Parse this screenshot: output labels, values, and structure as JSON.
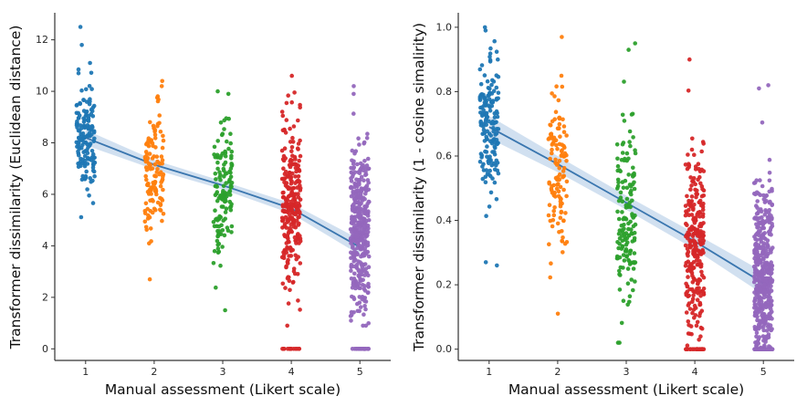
{
  "figure": {
    "background": "#ffffff"
  },
  "chart_data": [
    {
      "type": "scatter",
      "variant": "strip-plot-with-regression-line",
      "title": "",
      "xlabel": "Manual assessment (Likert scale)",
      "ylabel": "Transformer dissimilarity (Euclidean distance)",
      "xlim": [
        0.55,
        5.45
      ],
      "ylim": [
        -0.45,
        13.05
      ],
      "xticks": [
        1,
        2,
        3,
        4,
        5
      ],
      "xtick_labels": [
        "1",
        "2",
        "3",
        "4",
        "5"
      ],
      "yticks": [
        0,
        2,
        4,
        6,
        8,
        10,
        12
      ],
      "ytick_labels": [
        "0",
        "2",
        "4",
        "6",
        "8",
        "10",
        "12"
      ],
      "grid": false,
      "legend": "none",
      "categories": [
        {
          "x": 1,
          "label": "1",
          "color": "#1f77b4",
          "count": 150,
          "mean": 8.15,
          "sd": 1.1,
          "min": 4.6,
          "max": 12.6,
          "zeros": 0,
          "extras": [
            12.5,
            11.8,
            11.1,
            10.7
          ]
        },
        {
          "x": 2,
          "label": "2",
          "color": "#ff7f0e",
          "count": 125,
          "mean": 7.0,
          "sd": 1.2,
          "min": 2.6,
          "max": 10.5,
          "zeros": 0,
          "extras": [
            10.4,
            2.7
          ]
        },
        {
          "x": 3,
          "label": "3",
          "color": "#2ca02c",
          "count": 135,
          "mean": 6.2,
          "sd": 1.35,
          "min": 1.5,
          "max": 10.0,
          "zeros": 0,
          "extras": [
            10.0,
            9.9,
            1.5
          ]
        },
        {
          "x": 4,
          "label": "4",
          "color": "#d62728",
          "count": 260,
          "mean": 5.6,
          "sd": 1.65,
          "min": 0.9,
          "max": 10.7,
          "zeros": 14,
          "extras": [
            10.6
          ]
        },
        {
          "x": 5,
          "label": "5",
          "color": "#9467bd",
          "count": 380,
          "mean": 4.65,
          "sd": 1.65,
          "min": 0.9,
          "max": 10.2,
          "zeros": 26,
          "extras": [
            10.2,
            9.9
          ]
        }
      ],
      "trend": {
        "x": [
          1,
          2,
          3,
          4,
          5
        ],
        "y": [
          8.2,
          7.15,
          6.35,
          5.45,
          3.95
        ],
        "ci": [
          0.3,
          0.18,
          0.16,
          0.2,
          0.3
        ],
        "line_color": "#3a76af",
        "band_color": "#7ba7d4"
      }
    },
    {
      "type": "scatter",
      "variant": "strip-plot-with-regression-line",
      "title": "",
      "xlabel": "Manual assessment (Likert scale)",
      "ylabel": "Transformer dissimilarity (1 - cosine simalirity)",
      "xlim": [
        0.55,
        5.45
      ],
      "ylim": [
        -0.035,
        1.045
      ],
      "xticks": [
        1,
        2,
        3,
        4,
        5
      ],
      "xtick_labels": [
        "1",
        "2",
        "3",
        "4",
        "5"
      ],
      "yticks": [
        0.0,
        0.2,
        0.4,
        0.6,
        0.8,
        1.0
      ],
      "ytick_labels": [
        "0.0",
        "0.2",
        "0.4",
        "0.6",
        "0.8",
        "1.0"
      ],
      "grid": false,
      "legend": "none",
      "categories": [
        {
          "x": 1,
          "label": "1",
          "color": "#1f77b4",
          "count": 160,
          "mean": 0.7,
          "sd": 0.12,
          "min": 0.25,
          "max": 1.0,
          "zeros": 0,
          "extras": [
            1.0,
            0.99,
            0.27,
            0.26
          ]
        },
        {
          "x": 2,
          "label": "2",
          "color": "#ff7f0e",
          "count": 120,
          "mean": 0.565,
          "sd": 0.13,
          "min": 0.1,
          "max": 0.97,
          "zeros": 0,
          "extras": [
            0.97,
            0.11
          ]
        },
        {
          "x": 3,
          "label": "3",
          "color": "#2ca02c",
          "count": 150,
          "mean": 0.43,
          "sd": 0.145,
          "min": 0.02,
          "max": 0.95,
          "zeros": 0,
          "extras": [
            0.95,
            0.93,
            0.02
          ]
        },
        {
          "x": 4,
          "label": "4",
          "color": "#d62728",
          "count": 280,
          "mean": 0.33,
          "sd": 0.14,
          "min": 0.0,
          "max": 0.9,
          "zeros": 20,
          "extras": [
            0.9
          ]
        },
        {
          "x": 5,
          "label": "5",
          "color": "#9467bd",
          "count": 450,
          "mean": 0.22,
          "sd": 0.15,
          "min": 0.0,
          "max": 0.82,
          "zeros": 60,
          "extras": [
            0.82,
            0.81
          ]
        }
      ],
      "trend": {
        "x": [
          1,
          2,
          3,
          4,
          5
        ],
        "y": [
          0.69,
          0.575,
          0.455,
          0.335,
          0.205
        ],
        "ci": [
          0.035,
          0.025,
          0.022,
          0.025,
          0.035
        ],
        "line_color": "#3a76af",
        "band_color": "#7ba7d4"
      }
    }
  ]
}
